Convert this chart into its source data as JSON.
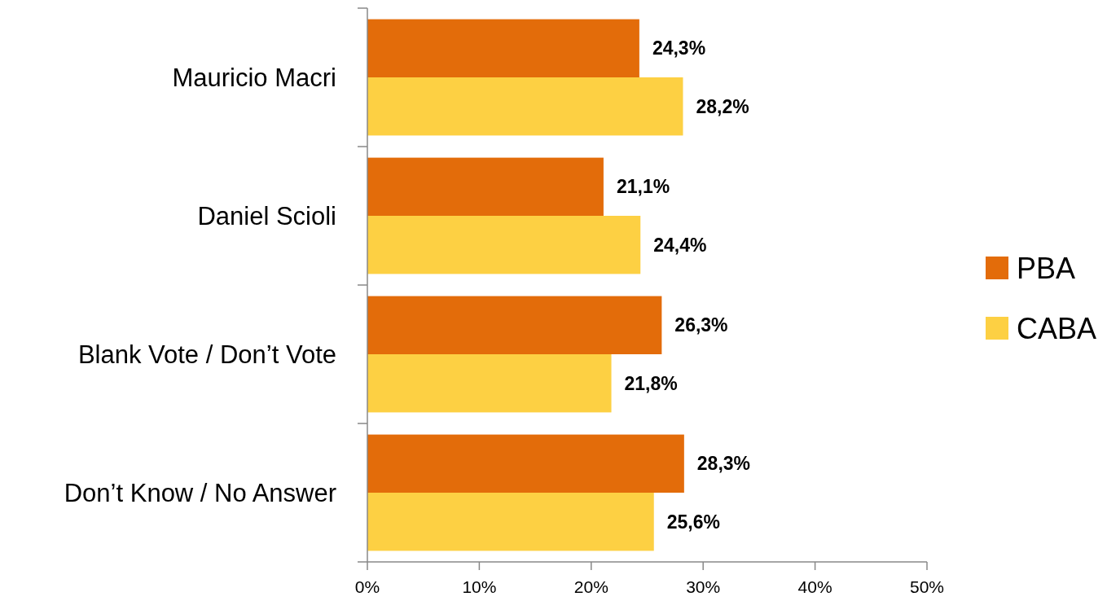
{
  "chart_data": {
    "type": "bar",
    "orientation": "horizontal",
    "categories": [
      "Mauricio Macri",
      "Daniel Scioli",
      "Blank Vote / Don’t Vote",
      "Don’t Know / No Answer"
    ],
    "series": [
      {
        "name": "PBA",
        "color": "#e36c0a",
        "values": [
          24.3,
          21.1,
          26.3,
          28.3
        ],
        "value_labels": [
          "24,3%",
          "21,1%",
          "26,3%",
          "28,3%"
        ]
      },
      {
        "name": "CABA",
        "color": "#fdd043",
        "values": [
          28.2,
          24.4,
          21.8,
          25.6
        ],
        "value_labels": [
          "28,2%",
          "24,4%",
          "21,8%",
          "25,6%"
        ]
      }
    ],
    "xlim": [
      0,
      50
    ],
    "xticks": [
      {
        "value": 0,
        "label": "0%"
      },
      {
        "value": 10,
        "label": "10%"
      },
      {
        "value": 20,
        "label": "20%"
      },
      {
        "value": 30,
        "label": "30%"
      },
      {
        "value": 40,
        "label": "40%"
      },
      {
        "value": 50,
        "label": "50%"
      }
    ],
    "grid": false,
    "legend": "right"
  }
}
